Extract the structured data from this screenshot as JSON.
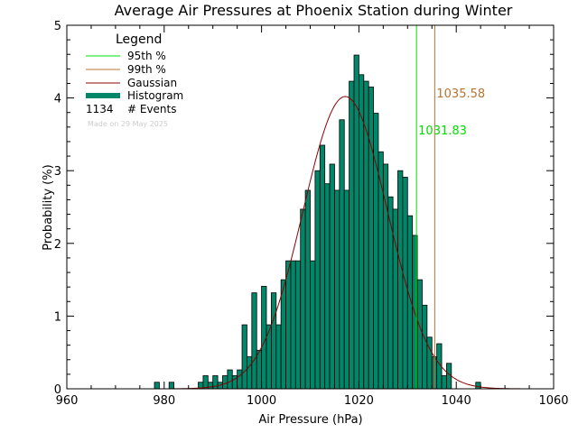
{
  "chart_data": {
    "type": "bar",
    "title": "Average Air Pressures at Phoenix Station during Winter",
    "xlabel": "Air Pressure (hPa)",
    "ylabel": "Probability (%)",
    "xlim": [
      960,
      1060
    ],
    "ylim": [
      0,
      5
    ],
    "x_ticks": [
      960,
      980,
      1000,
      1020,
      1040,
      1060
    ],
    "y_ticks": [
      0,
      1,
      2,
      3,
      4,
      5
    ],
    "bin_width": 1,
    "histogram": {
      "name": "Histogram",
      "color": "#00876a",
      "bin_left_edges": [
        978,
        981,
        987,
        988,
        989,
        990,
        991,
        992,
        993,
        994,
        995,
        996,
        997,
        998,
        999,
        1000,
        1001,
        1002,
        1003,
        1004,
        1005,
        1006,
        1007,
        1008,
        1009,
        1010,
        1011,
        1012,
        1013,
        1014,
        1015,
        1016,
        1017,
        1018,
        1019,
        1020,
        1021,
        1022,
        1023,
        1024,
        1025,
        1026,
        1027,
        1028,
        1029,
        1030,
        1031,
        1032,
        1033,
        1034,
        1035,
        1036,
        1037,
        1038,
        1044
      ],
      "values": [
        0.09,
        0.09,
        0.09,
        0.18,
        0.09,
        0.18,
        0.09,
        0.18,
        0.26,
        0.18,
        0.26,
        0.88,
        0.44,
        1.32,
        0.53,
        1.41,
        0.88,
        1.32,
        0.88,
        1.5,
        1.76,
        1.76,
        1.76,
        2.47,
        2.73,
        1.76,
        3.0,
        3.35,
        2.82,
        3.09,
        2.73,
        3.7,
        2.73,
        4.23,
        4.59,
        4.32,
        4.23,
        4.15,
        3.79,
        3.26,
        3.09,
        2.64,
        2.47,
        3.0,
        2.91,
        2.38,
        2.11,
        1.5,
        1.15,
        0.71,
        0.44,
        0.62,
        0.18,
        0.35,
        0.09
      ]
    },
    "gaussian": {
      "name": "Gaussian",
      "color": "#8b0000",
      "mean": 1017.2,
      "sigma": 8.7,
      "peak": 4.02
    },
    "percentiles": [
      {
        "name": "95th %",
        "value": 1031.83,
        "label": "1031.83",
        "color": "#00e000"
      },
      {
        "name": "99th %",
        "value": 1035.58,
        "label": "1035.58",
        "color": "#b87333"
      }
    ],
    "legend": {
      "title": "Legend",
      "placement": "top-left",
      "entries": [
        "95th %",
        "99th %",
        "Gaussian",
        "Histogram"
      ],
      "events_count": "1134",
      "events_label": "# Events",
      "made_on": "Made on 29 May 2025"
    },
    "grid": false
  }
}
